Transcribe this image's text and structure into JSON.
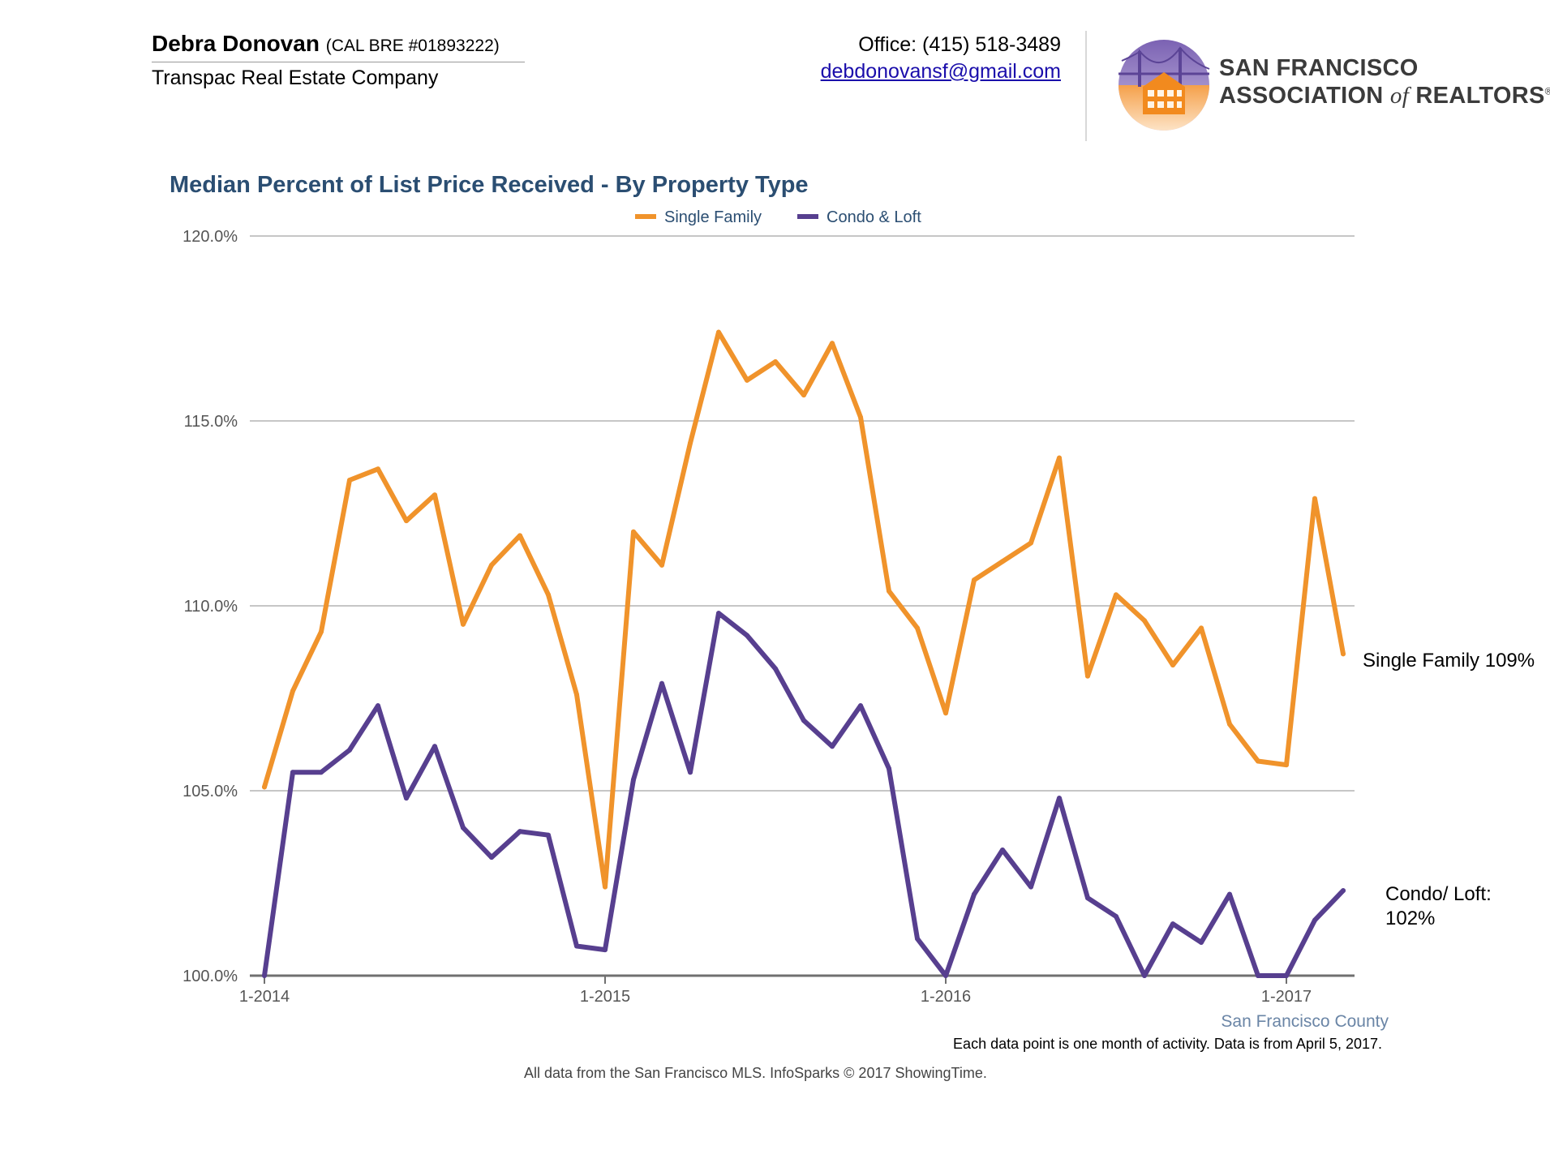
{
  "header": {
    "agent_name": "Debra Donovan",
    "agent_license": "(CAL BRE #01893222)",
    "company": "Transpac Real Estate Company",
    "office": "Office: (415) 518-3489",
    "email": "debdonovansf@gmail.com",
    "association_line1": "SAN FRANCISCO",
    "association_line2_a": "ASSOCIATION ",
    "association_line2_of": "of",
    "association_line2_b": " REALTORS",
    "association_mark": "®",
    "logo_icon": "golden-gate-bridge-house-logo"
  },
  "colors": {
    "single_family": "#f0932b",
    "condo_loft": "#573f8f",
    "title": "#2b4e72",
    "county": "#6a85a6"
  },
  "chart_data": {
    "type": "line",
    "title": "Median Percent of List Price Received - By Property Type",
    "xlabel": "",
    "ylabel": "",
    "x": [
      "2014-01",
      "2014-02",
      "2014-03",
      "2014-04",
      "2014-05",
      "2014-06",
      "2014-07",
      "2014-08",
      "2014-09",
      "2014-10",
      "2014-11",
      "2014-12",
      "2015-01",
      "2015-02",
      "2015-03",
      "2015-04",
      "2015-05",
      "2015-06",
      "2015-07",
      "2015-08",
      "2015-09",
      "2015-10",
      "2015-11",
      "2015-12",
      "2016-01",
      "2016-02",
      "2016-03",
      "2016-04",
      "2016-05",
      "2016-06",
      "2016-07",
      "2016-08",
      "2016-09",
      "2016-10",
      "2016-11",
      "2016-12",
      "2017-01",
      "2017-02",
      "2017-03"
    ],
    "x_ticks": [
      "1-2014",
      "1-2015",
      "1-2016",
      "1-2017"
    ],
    "y_ticks": [
      "100.0%",
      "105.0%",
      "110.0%",
      "115.0%",
      "120.0%"
    ],
    "ylim": [
      100,
      120
    ],
    "grid": true,
    "legend": "top-center",
    "series": [
      {
        "name": "Single Family",
        "color": "#f0932b",
        "values": [
          105.1,
          107.7,
          109.3,
          113.4,
          113.7,
          112.3,
          113.0,
          109.5,
          111.1,
          111.9,
          110.3,
          107.6,
          102.4,
          112.0,
          111.1,
          114.4,
          117.4,
          116.1,
          116.6,
          115.7,
          117.1,
          115.1,
          110.4,
          109.4,
          107.1,
          110.7,
          111.2,
          111.7,
          114.0,
          108.1,
          110.3,
          109.6,
          108.4,
          109.4,
          106.8,
          105.8,
          105.7,
          112.9,
          108.7
        ]
      },
      {
        "name": "Condo & Loft",
        "color": "#573f8f",
        "values": [
          100.0,
          105.5,
          105.5,
          106.1,
          107.3,
          104.8,
          106.2,
          104.0,
          103.2,
          103.9,
          103.8,
          100.8,
          100.7,
          105.3,
          107.9,
          105.5,
          109.8,
          109.2,
          108.3,
          106.9,
          106.2,
          107.3,
          105.6,
          101.0,
          100.0,
          102.2,
          103.4,
          102.4,
          104.8,
          102.1,
          101.6,
          100.0,
          101.4,
          100.9,
          102.2,
          100.0,
          100.0,
          101.5,
          102.3
        ]
      }
    ],
    "annotations": {
      "single_family": "Single Family 109%",
      "condo_line1": "Condo/ Loft:",
      "condo_line2": "102%",
      "county": "San Francisco County"
    }
  },
  "footer": {
    "note": "Each data point is one month of activity. Data is from April 5, 2017.",
    "source": "All data from the San Francisco MLS. InfoSparks © 2017 ShowingTime."
  }
}
